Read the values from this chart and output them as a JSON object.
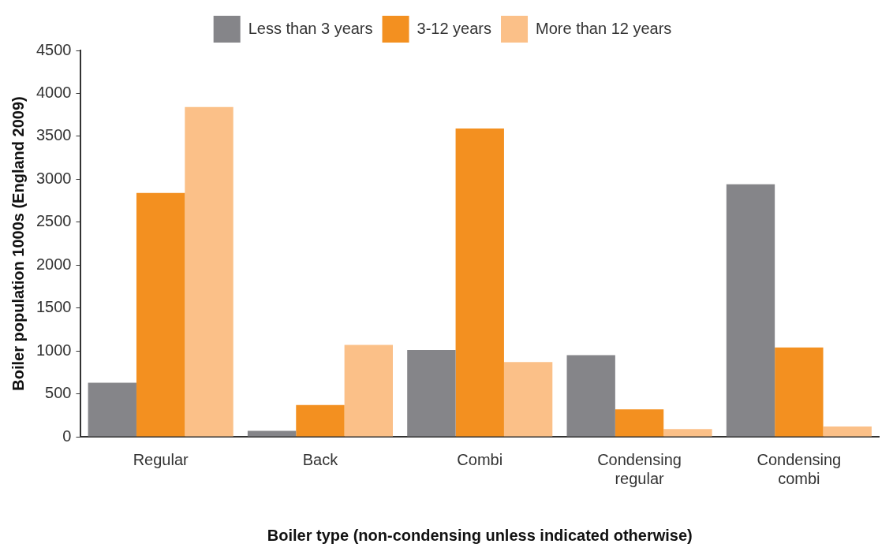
{
  "chart_data": {
    "type": "bar",
    "xlabel": "Boiler type (non-condensing unless indicated otherwise)",
    "ylabel": "Boiler population 1000s (England 2009)",
    "categories": [
      "Regular",
      "Back",
      "Combi",
      "Condensing regular",
      "Condensing combi"
    ],
    "series": [
      {
        "name": "Less than 3 years",
        "color": "#858589",
        "values": [
          630,
          70,
          1010,
          950,
          2940
        ]
      },
      {
        "name": "3-12 years",
        "color": "#f39020",
        "values": [
          2840,
          370,
          3590,
          320,
          1040
        ]
      },
      {
        "name": "More than 12 years",
        "color": "#fbc088",
        "values": [
          3840,
          1070,
          870,
          90,
          120
        ]
      }
    ],
    "ylim": [
      0,
      4500
    ],
    "yticks": [
      0,
      500,
      1000,
      1500,
      2000,
      2500,
      3000,
      3500,
      4000,
      4500
    ],
    "grid": false,
    "legend": "top"
  }
}
